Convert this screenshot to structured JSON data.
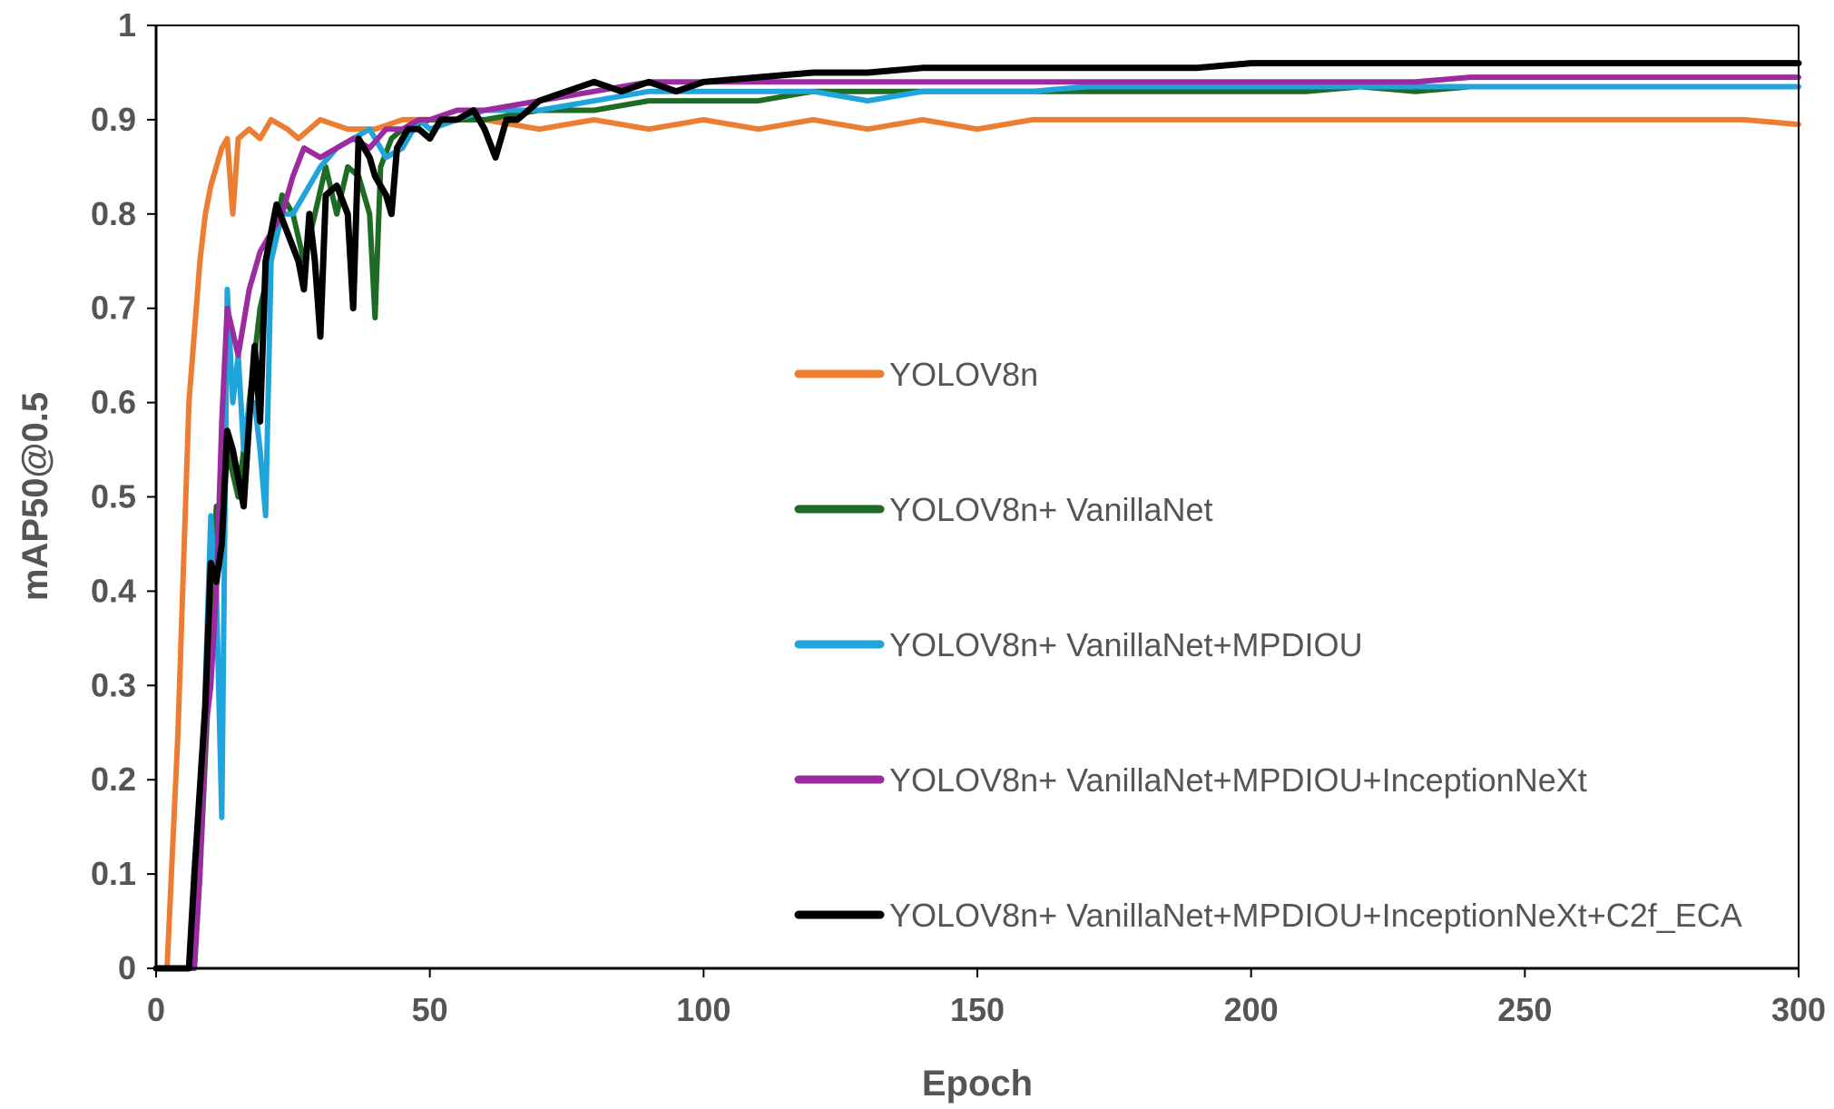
{
  "chart_data": {
    "type": "line",
    "xlabel": "Epoch",
    "ylabel": "mAP50@0.5",
    "xlim": [
      0,
      300
    ],
    "ylim": [
      0,
      1
    ],
    "x_ticks": [
      "0",
      "50",
      "100",
      "150",
      "200",
      "250",
      "300"
    ],
    "y_ticks": [
      "0",
      "0.1",
      "0.2",
      "0.3",
      "0.4",
      "0.5",
      "0.6",
      "0.7",
      "0.8",
      "0.9",
      "1"
    ],
    "legend_position": "center-right",
    "grid": false,
    "series": [
      {
        "name": "YOLOV8n",
        "color": "#ED7D31",
        "points": [
          [
            0,
            0
          ],
          [
            2,
            0
          ],
          [
            4,
            0.25
          ],
          [
            6,
            0.6
          ],
          [
            8,
            0.75
          ],
          [
            9,
            0.8
          ],
          [
            10,
            0.83
          ],
          [
            11,
            0.85
          ],
          [
            12,
            0.87
          ],
          [
            13,
            0.88
          ],
          [
            14,
            0.8
          ],
          [
            15,
            0.88
          ],
          [
            17,
            0.89
          ],
          [
            19,
            0.88
          ],
          [
            21,
            0.9
          ],
          [
            24,
            0.89
          ],
          [
            26,
            0.88
          ],
          [
            30,
            0.9
          ],
          [
            35,
            0.89
          ],
          [
            40,
            0.89
          ],
          [
            45,
            0.9
          ],
          [
            50,
            0.9
          ],
          [
            60,
            0.9
          ],
          [
            70,
            0.89
          ],
          [
            80,
            0.9
          ],
          [
            90,
            0.89
          ],
          [
            100,
            0.9
          ],
          [
            110,
            0.89
          ],
          [
            120,
            0.9
          ],
          [
            130,
            0.89
          ],
          [
            140,
            0.9
          ],
          [
            150,
            0.89
          ],
          [
            160,
            0.9
          ],
          [
            170,
            0.9
          ],
          [
            180,
            0.9
          ],
          [
            190,
            0.9
          ],
          [
            200,
            0.9
          ],
          [
            210,
            0.9
          ],
          [
            220,
            0.9
          ],
          [
            230,
            0.9
          ],
          [
            240,
            0.9
          ],
          [
            250,
            0.9
          ],
          [
            260,
            0.9
          ],
          [
            270,
            0.9
          ],
          [
            280,
            0.9
          ],
          [
            290,
            0.9
          ],
          [
            300,
            0.895
          ]
        ]
      },
      {
        "name": "YOLOV8n+ VanillaNet",
        "color": "#1E6B24",
        "points": [
          [
            0,
            0
          ],
          [
            7,
            0
          ],
          [
            8,
            0.1
          ],
          [
            10,
            0.35
          ],
          [
            11,
            0.49
          ],
          [
            12,
            0.45
          ],
          [
            13,
            0.55
          ],
          [
            15,
            0.5
          ],
          [
            17,
            0.6
          ],
          [
            19,
            0.7
          ],
          [
            21,
            0.75
          ],
          [
            23,
            0.82
          ],
          [
            25,
            0.8
          ],
          [
            27,
            0.75
          ],
          [
            29,
            0.8
          ],
          [
            31,
            0.85
          ],
          [
            33,
            0.8
          ],
          [
            35,
            0.85
          ],
          [
            37,
            0.84
          ],
          [
            39,
            0.8
          ],
          [
            40,
            0.69
          ],
          [
            41,
            0.85
          ],
          [
            43,
            0.88
          ],
          [
            45,
            0.89
          ],
          [
            50,
            0.9
          ],
          [
            60,
            0.9
          ],
          [
            70,
            0.91
          ],
          [
            80,
            0.91
          ],
          [
            90,
            0.92
          ],
          [
            100,
            0.92
          ],
          [
            110,
            0.92
          ],
          [
            120,
            0.93
          ],
          [
            130,
            0.93
          ],
          [
            140,
            0.93
          ],
          [
            150,
            0.93
          ],
          [
            160,
            0.93
          ],
          [
            170,
            0.93
          ],
          [
            180,
            0.93
          ],
          [
            190,
            0.93
          ],
          [
            200,
            0.93
          ],
          [
            210,
            0.93
          ],
          [
            220,
            0.935
          ],
          [
            230,
            0.93
          ],
          [
            240,
            0.935
          ],
          [
            250,
            0.935
          ],
          [
            260,
            0.935
          ],
          [
            270,
            0.935
          ],
          [
            280,
            0.935
          ],
          [
            290,
            0.935
          ],
          [
            300,
            0.935
          ]
        ]
      },
      {
        "name": "YOLOV8n+ VanillaNet+MPDIOU",
        "color": "#1FA5DB",
        "points": [
          [
            0,
            0
          ],
          [
            7,
            0
          ],
          [
            8,
            0.1
          ],
          [
            9,
            0.3
          ],
          [
            10,
            0.48
          ],
          [
            11,
            0.4
          ],
          [
            12,
            0.16
          ],
          [
            13,
            0.72
          ],
          [
            14,
            0.6
          ],
          [
            15,
            0.65
          ],
          [
            16,
            0.55
          ],
          [
            17,
            0.6
          ],
          [
            18,
            0.6
          ],
          [
            19,
            0.55
          ],
          [
            20,
            0.48
          ],
          [
            21,
            0.75
          ],
          [
            23,
            0.8
          ],
          [
            25,
            0.8
          ],
          [
            27,
            0.82
          ],
          [
            30,
            0.85
          ],
          [
            33,
            0.87
          ],
          [
            36,
            0.88
          ],
          [
            39,
            0.89
          ],
          [
            42,
            0.86
          ],
          [
            45,
            0.87
          ],
          [
            48,
            0.9
          ],
          [
            50,
            0.89
          ],
          [
            60,
            0.91
          ],
          [
            70,
            0.91
          ],
          [
            80,
            0.92
          ],
          [
            90,
            0.93
          ],
          [
            100,
            0.93
          ],
          [
            110,
            0.93
          ],
          [
            120,
            0.93
          ],
          [
            130,
            0.92
          ],
          [
            140,
            0.93
          ],
          [
            150,
            0.93
          ],
          [
            160,
            0.93
          ],
          [
            170,
            0.935
          ],
          [
            180,
            0.935
          ],
          [
            190,
            0.935
          ],
          [
            200,
            0.935
          ],
          [
            210,
            0.935
          ],
          [
            220,
            0.935
          ],
          [
            230,
            0.935
          ],
          [
            240,
            0.935
          ],
          [
            250,
            0.935
          ],
          [
            260,
            0.935
          ],
          [
            270,
            0.935
          ],
          [
            280,
            0.935
          ],
          [
            290,
            0.935
          ],
          [
            300,
            0.935
          ]
        ]
      },
      {
        "name": "YOLOV8n+ VanillaNet+MPDIOU+InceptionNeXt",
        "color": "#9B2B9E",
        "points": [
          [
            0,
            0
          ],
          [
            7,
            0
          ],
          [
            8,
            0.1
          ],
          [
            9,
            0.25
          ],
          [
            10,
            0.3
          ],
          [
            11,
            0.4
          ],
          [
            12,
            0.58
          ],
          [
            13,
            0.7
          ],
          [
            15,
            0.65
          ],
          [
            17,
            0.72
          ],
          [
            19,
            0.76
          ],
          [
            21,
            0.78
          ],
          [
            23,
            0.8
          ],
          [
            25,
            0.84
          ],
          [
            27,
            0.87
          ],
          [
            30,
            0.86
          ],
          [
            33,
            0.87
          ],
          [
            36,
            0.88
          ],
          [
            39,
            0.87
          ],
          [
            42,
            0.89
          ],
          [
            45,
            0.89
          ],
          [
            48,
            0.9
          ],
          [
            50,
            0.9
          ],
          [
            55,
            0.91
          ],
          [
            60,
            0.91
          ],
          [
            70,
            0.92
          ],
          [
            80,
            0.93
          ],
          [
            90,
            0.94
          ],
          [
            100,
            0.94
          ],
          [
            110,
            0.94
          ],
          [
            120,
            0.94
          ],
          [
            130,
            0.94
          ],
          [
            140,
            0.94
          ],
          [
            150,
            0.94
          ],
          [
            160,
            0.94
          ],
          [
            170,
            0.94
          ],
          [
            180,
            0.94
          ],
          [
            190,
            0.94
          ],
          [
            200,
            0.94
          ],
          [
            210,
            0.94
          ],
          [
            220,
            0.94
          ],
          [
            230,
            0.94
          ],
          [
            240,
            0.945
          ],
          [
            250,
            0.945
          ],
          [
            260,
            0.945
          ],
          [
            270,
            0.945
          ],
          [
            280,
            0.945
          ],
          [
            290,
            0.945
          ],
          [
            300,
            0.945
          ]
        ]
      },
      {
        "name": "YOLOV8n+ VanillaNet+MPDIOU+InceptionNeXt+C2f_ECA",
        "color": "#000000",
        "points": [
          [
            0,
            0
          ],
          [
            6,
            0
          ],
          [
            7,
            0.1
          ],
          [
            9,
            0.28
          ],
          [
            10,
            0.43
          ],
          [
            11,
            0.41
          ],
          [
            12,
            0.45
          ],
          [
            13,
            0.57
          ],
          [
            14,
            0.55
          ],
          [
            15,
            0.52
          ],
          [
            16,
            0.49
          ],
          [
            17,
            0.58
          ],
          [
            18,
            0.66
          ],
          [
            19,
            0.58
          ],
          [
            20,
            0.75
          ],
          [
            22,
            0.81
          ],
          [
            24,
            0.78
          ],
          [
            26,
            0.75
          ],
          [
            27,
            0.72
          ],
          [
            28,
            0.8
          ],
          [
            29,
            0.75
          ],
          [
            30,
            0.67
          ],
          [
            31,
            0.82
          ],
          [
            33,
            0.83
          ],
          [
            35,
            0.8
          ],
          [
            36,
            0.7
          ],
          [
            37,
            0.88
          ],
          [
            39,
            0.86
          ],
          [
            40,
            0.84
          ],
          [
            42,
            0.82
          ],
          [
            43,
            0.8
          ],
          [
            44,
            0.87
          ],
          [
            46,
            0.89
          ],
          [
            48,
            0.89
          ],
          [
            50,
            0.88
          ],
          [
            52,
            0.9
          ],
          [
            55,
            0.9
          ],
          [
            58,
            0.91
          ],
          [
            60,
            0.89
          ],
          [
            62,
            0.86
          ],
          [
            64,
            0.9
          ],
          [
            66,
            0.9
          ],
          [
            68,
            0.91
          ],
          [
            70,
            0.92
          ],
          [
            75,
            0.93
          ],
          [
            80,
            0.94
          ],
          [
            85,
            0.93
          ],
          [
            90,
            0.94
          ],
          [
            95,
            0.93
          ],
          [
            100,
            0.94
          ],
          [
            110,
            0.945
          ],
          [
            120,
            0.95
          ],
          [
            130,
            0.95
          ],
          [
            140,
            0.955
          ],
          [
            150,
            0.955
          ],
          [
            160,
            0.955
          ],
          [
            170,
            0.955
          ],
          [
            180,
            0.955
          ],
          [
            190,
            0.955
          ],
          [
            200,
            0.96
          ],
          [
            210,
            0.96
          ],
          [
            220,
            0.96
          ],
          [
            230,
            0.96
          ],
          [
            240,
            0.96
          ],
          [
            250,
            0.96
          ],
          [
            260,
            0.96
          ],
          [
            270,
            0.96
          ],
          [
            280,
            0.96
          ],
          [
            290,
            0.96
          ],
          [
            300,
            0.96
          ]
        ]
      }
    ]
  }
}
